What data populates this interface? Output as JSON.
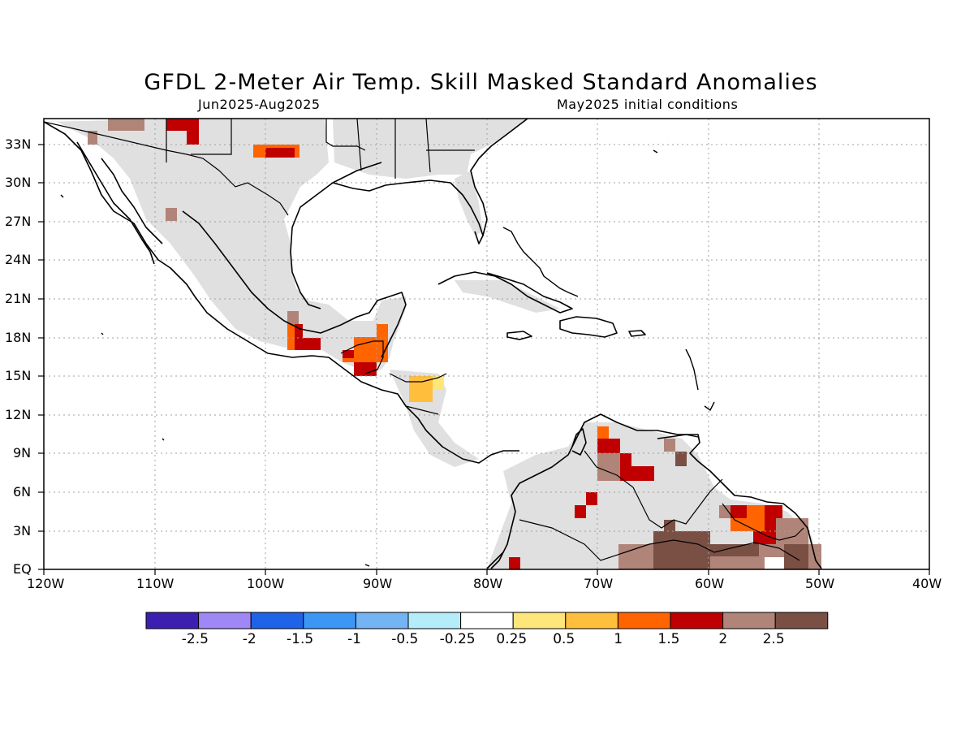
{
  "title": "GFDL 2-Meter Air Temp. Skill Masked Standard Anomalies",
  "subtitle_left": "Jun2025-Aug2025",
  "subtitle_right": "May2025 initial conditions",
  "lat_labels": [
    "33N",
    "30N",
    "27N",
    "24N",
    "21N",
    "18N",
    "15N",
    "12N",
    "9N",
    "6N",
    "3N",
    "EQ"
  ],
  "lon_labels": [
    "120W",
    "110W",
    "100W",
    "90W",
    "80W",
    "70W",
    "60W",
    "50W",
    "40W"
  ],
  "colorbar": {
    "colors": [
      "#3c1fb0",
      "#9f87f5",
      "#1f64e8",
      "#3c96f5",
      "#74b4f5",
      "#b4ecfa",
      "#ffffff",
      "#ffe67a",
      "#ffbe3c",
      "#ff6400",
      "#c00000",
      "#b08478",
      "#7a5045"
    ],
    "labels": [
      "-2.5",
      "-2",
      "-1.5",
      "-1",
      "-0.5",
      "-0.25",
      "0.25",
      "0.5",
      "1",
      "1.5",
      "2",
      "2.5"
    ]
  },
  "colors": {
    "land_mask": "#e0e0e0",
    "coast": "#000000",
    "grid": "#a0a0a0"
  }
}
